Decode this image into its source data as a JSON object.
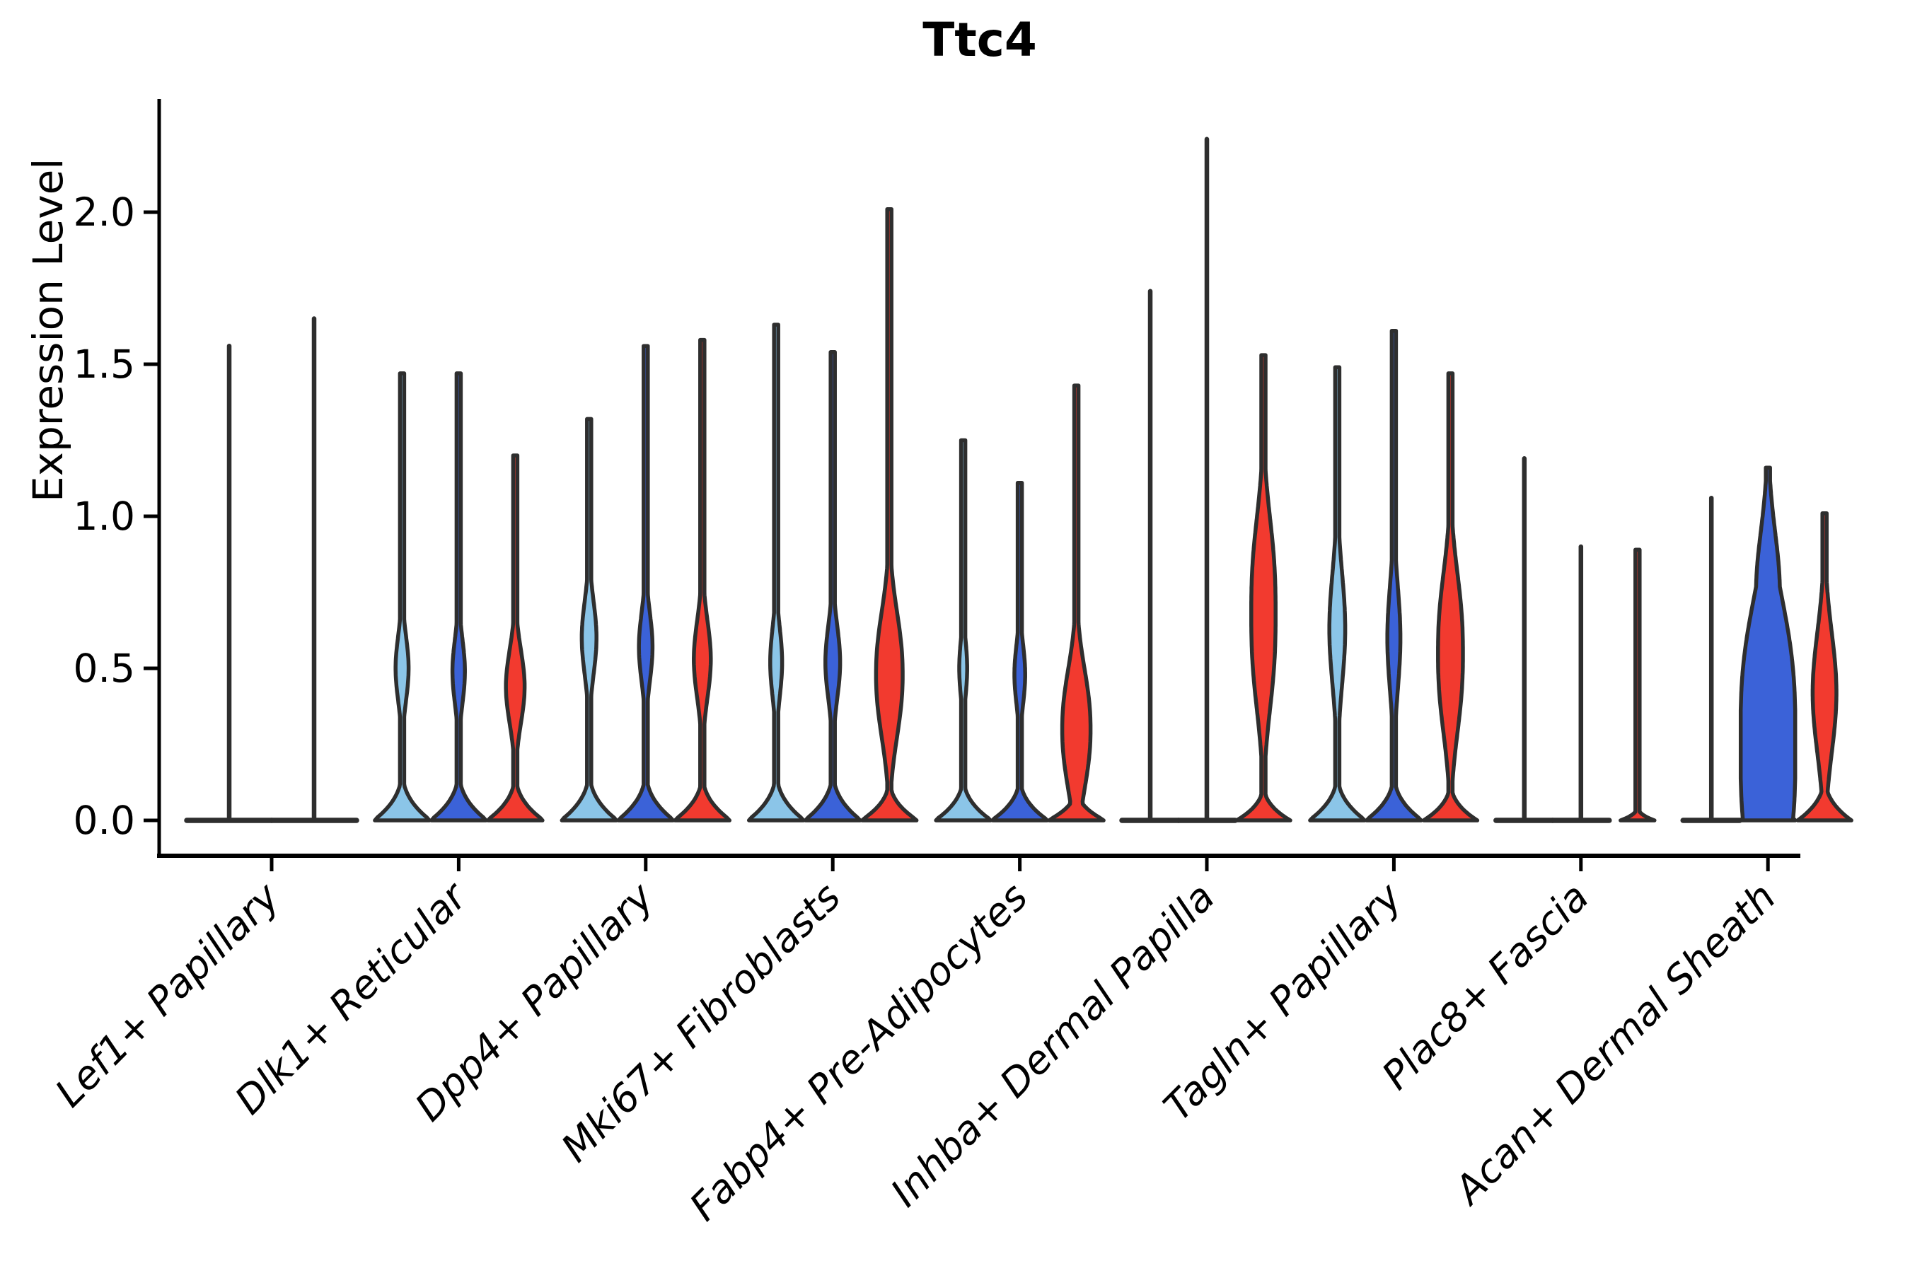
{
  "title": "Ttc4",
  "y_axis": {
    "label": "Expression Level",
    "tick_labels": [
      "0.0",
      "0.5",
      "1.0",
      "1.5",
      "2.0"
    ]
  },
  "x_axis": {
    "categories": [
      "Lef1+ Papillary",
      "Dlk1+ Reticular",
      "Dpp4+ Papillary",
      "Mki67+ Fibroblasts",
      "Fabp4+ Pre-Adipocytes",
      "Inhba+ Dermal Papilla",
      "Tagln+ Papillary",
      "Plac8+ Fascia",
      "Acan+ Dermal Sheath"
    ]
  },
  "palette": {
    "light_blue": "#8BC5E8",
    "dark_blue": "#3B62D8",
    "red": "#F23A2F",
    "violin_outline": "#2E2E2E",
    "axis_color": "#000000",
    "background": "#FFFFFF"
  },
  "chart_data": {
    "type": "violin",
    "title": "Ttc4",
    "ylabel": "Expression Level",
    "ylim": [
      0,
      2.37
    ],
    "yticks": [
      0.0,
      0.5,
      1.0,
      1.5,
      2.0
    ],
    "legend": "none",
    "series": [
      "light_blue",
      "dark_blue",
      "red"
    ],
    "categories": [
      "Lef1+ Papillary",
      "Dlk1+ Reticular",
      "Dpp4+ Papillary",
      "Mki67+ Fibroblasts",
      "Fabp4+ Pre-Adipocytes",
      "Inhba+ Dermal Papilla",
      "Tagln+ Papillary",
      "Plac8+ Fascia",
      "Acan+ Dermal Sheath"
    ],
    "groups": [
      {
        "label": "Lef1+ Papillary",
        "violins": [
          {
            "series": "light_blue",
            "max": 1.56,
            "flat": true
          },
          {
            "series": "dark_blue",
            "max": 1.65,
            "flat": true
          }
        ]
      },
      {
        "label": "Dlk1+ Reticular",
        "violins": [
          {
            "series": "light_blue",
            "max": 1.47,
            "base": {
              "h": 0.18,
              "w": 1.0
            },
            "bulges": [
              {
                "c": 0.5,
                "s": 0.15,
                "w": 0.23
              }
            ]
          },
          {
            "series": "dark_blue",
            "max": 1.47,
            "base": {
              "h": 0.18,
              "w": 1.0
            },
            "bulges": [
              {
                "c": 0.49,
                "s": 0.15,
                "w": 0.22
              }
            ]
          },
          {
            "series": "red",
            "max": 1.2,
            "base": {
              "h": 0.17,
              "w": 1.0
            },
            "bulges": [
              {
                "c": 0.44,
                "s": 0.17,
                "w": 0.33
              }
            ]
          }
        ]
      },
      {
        "label": "Dpp4+ Papillary",
        "violins": [
          {
            "series": "light_blue",
            "max": 1.32,
            "base": {
              "h": 0.18,
              "w": 1.0
            },
            "bulges": [
              {
                "c": 0.6,
                "s": 0.17,
                "w": 0.26
              }
            ]
          },
          {
            "series": "dark_blue",
            "max": 1.56,
            "base": {
              "h": 0.18,
              "w": 1.0
            },
            "bulges": [
              {
                "c": 0.57,
                "s": 0.16,
                "w": 0.24
              }
            ]
          },
          {
            "series": "red",
            "max": 1.58,
            "base": {
              "h": 0.17,
              "w": 1.0
            },
            "bulges": [
              {
                "c": 0.53,
                "s": 0.18,
                "w": 0.3
              }
            ]
          }
        ]
      },
      {
        "label": "Mki67+ Fibroblasts",
        "violins": [
          {
            "series": "light_blue",
            "max": 1.63,
            "base": {
              "h": 0.18,
              "w": 1.0
            },
            "bulges": [
              {
                "c": 0.52,
                "s": 0.16,
                "w": 0.21
              }
            ]
          },
          {
            "series": "dark_blue",
            "max": 1.54,
            "base": {
              "h": 0.18,
              "w": 1.0
            },
            "bulges": [
              {
                "c": 0.52,
                "s": 0.17,
                "w": 0.26
              }
            ]
          },
          {
            "series": "red",
            "max": 2.01,
            "base": {
              "h": 0.15,
              "w": 1.0
            },
            "bulges": [
              {
                "c": 0.48,
                "s": 0.27,
                "k": 2.2,
                "w": 0.47
              }
            ]
          }
        ]
      },
      {
        "label": "Fabp4+ Pre-Adipocytes",
        "violins": [
          {
            "series": "light_blue",
            "max": 1.25,
            "base": {
              "h": 0.16,
              "w": 1.0
            },
            "bulges": [
              {
                "c": 0.5,
                "s": 0.13,
                "w": 0.14
              }
            ]
          },
          {
            "series": "dark_blue",
            "max": 1.11,
            "base": {
              "h": 0.16,
              "w": 1.0
            },
            "bulges": [
              {
                "c": 0.48,
                "s": 0.14,
                "w": 0.19
              }
            ]
          },
          {
            "series": "red",
            "max": 1.43,
            "base": {
              "h": 0.12,
              "w": 1.0
            },
            "bulges": [
              {
                "c": 0.3,
                "s": 0.26,
                "k": 2.2,
                "w": 0.5
              }
            ]
          }
        ]
      },
      {
        "label": "Inhba+ Dermal Papilla",
        "violins": [
          {
            "series": "light_blue",
            "max": 1.74,
            "flat": true
          },
          {
            "series": "dark_blue",
            "max": 2.24,
            "flat": true
          },
          {
            "series": "red",
            "max": 1.53,
            "base": {
              "h": 0.13,
              "w": 0.95
            },
            "bulges": [
              {
                "c": 0.68,
                "s": 0.38,
                "k": 2.6,
                "w": 0.43
              }
            ]
          }
        ]
      },
      {
        "label": "Tagln+ Papillary",
        "violins": [
          {
            "series": "light_blue",
            "max": 1.49,
            "base": {
              "h": 0.17,
              "w": 1.0
            },
            "bulges": [
              {
                "c": 0.63,
                "s": 0.26,
                "w": 0.28
              }
            ]
          },
          {
            "series": "dark_blue",
            "max": 1.61,
            "base": {
              "h": 0.17,
              "w": 1.0
            },
            "bulges": [
              {
                "c": 0.6,
                "s": 0.24,
                "w": 0.23
              }
            ]
          },
          {
            "series": "red",
            "max": 1.47,
            "base": {
              "h": 0.14,
              "w": 0.95
            },
            "bulges": [
              {
                "c": 0.55,
                "s": 0.33,
                "k": 2.4,
                "w": 0.44
              }
            ]
          }
        ]
      },
      {
        "label": "Plac8+ Fascia",
        "violins": [
          {
            "series": "light_blue",
            "max": 1.19,
            "flat": true
          },
          {
            "series": "dark_blue",
            "max": 0.9,
            "flat": true
          },
          {
            "series": "red",
            "max": 0.89,
            "base": {
              "h": 0.05,
              "w": 0.6
            },
            "bulges": [
              {
                "c": 0.45,
                "s": 0.09,
                "w": 0.065
              }
            ]
          }
        ]
      },
      {
        "label": "Acan+ Dermal Sheath",
        "violins": [
          {
            "series": "light_blue",
            "max": 1.06,
            "flat": true
          },
          {
            "series": "dark_blue",
            "max": 1.16,
            "base": {
              "h": 0.12,
              "w": 1.0
            },
            "bulges": [
              {
                "c": 0.25,
                "s": 0.55,
                "k": 3,
                "w": 0.97
              },
              {
                "c": 0.75,
                "s": 0.28,
                "w": 0.42
              }
            ]
          },
          {
            "series": "red",
            "max": 1.01,
            "base": {
              "h": 0.16,
              "w": 0.95
            },
            "bulges": [
              {
                "c": 0.42,
                "s": 0.28,
                "w": 0.42
              }
            ]
          }
        ]
      }
    ]
  }
}
